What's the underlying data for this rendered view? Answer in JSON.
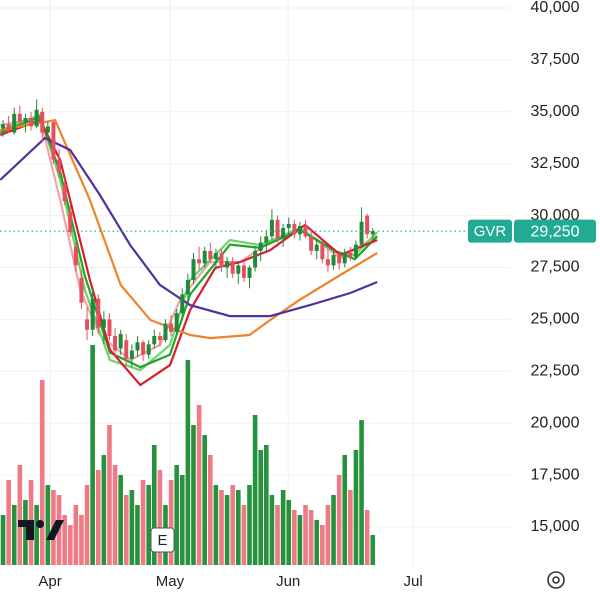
{
  "chart_data": {
    "type": "candlestick",
    "symbol": "GVR",
    "last_price": {
      "value": 29250,
      "label": "29,250"
    },
    "earnings_marker": "E",
    "up_color": "#1f8a3a",
    "down_color": "#e5505f",
    "volume_up_color": "#26923c",
    "volume_down_color": "#ee7a86",
    "price_label_color": "#22ab94",
    "xlim": [
      -0.54,
      90.5
    ],
    "xticks": [
      {
        "value": 8.4,
        "label": "Apr"
      },
      {
        "value": 29.8,
        "label": "May"
      },
      {
        "value": 50.9,
        "label": "Jun"
      },
      {
        "value": 73.2,
        "label": "Jul"
      }
    ],
    "ylim": [
      13170,
      40385
    ],
    "yticks": [
      {
        "value": 15000,
        "label": "15,000"
      },
      {
        "value": 17500,
        "label": "17,500"
      },
      {
        "value": 20000,
        "label": "20,000"
      },
      {
        "value": 22500,
        "label": "22,500"
      },
      {
        "value": 25000,
        "label": "25,000"
      },
      {
        "value": 27500,
        "label": "27,500"
      },
      {
        "value": 30000,
        "label": "30,000"
      },
      {
        "value": 32500,
        "label": "32,500"
      },
      {
        "value": 35000,
        "label": "35,000"
      },
      {
        "value": 37500,
        "label": "37,500"
      },
      {
        "value": 40000,
        "label": "40,000"
      }
    ],
    "vlim": [
      0,
      240
    ],
    "candles": [
      [
        34200,
        34600,
        33800,
        34400
      ],
      [
        34400,
        34800,
        34000,
        34100
      ],
      [
        34000,
        35200,
        33900,
        34900
      ],
      [
        34900,
        35300,
        34300,
        34500
      ],
      [
        34500,
        34900,
        34000,
        34700
      ],
      [
        34700,
        35000,
        34100,
        34300
      ],
      [
        34300,
        35600,
        34200,
        35100
      ],
      [
        35000,
        35200,
        33500,
        34000
      ],
      [
        34000,
        34500,
        33700,
        34300
      ],
      [
        34500,
        34600,
        32500,
        32700
      ],
      [
        32700,
        33200,
        31800,
        32100
      ],
      [
        31500,
        31800,
        30500,
        30700
      ],
      [
        30200,
        30600,
        29000,
        29200
      ],
      [
        28500,
        28800,
        27300,
        27600
      ],
      [
        27000,
        27400,
        25500,
        25800
      ],
      [
        25000,
        25600,
        24000,
        24500
      ],
      [
        24500,
        26500,
        24200,
        26000
      ],
      [
        26000,
        26200,
        24300,
        24600
      ],
      [
        24600,
        25400,
        23800,
        25000
      ],
      [
        25000,
        25300,
        24000,
        24200
      ],
      [
        24200,
        24600,
        23200,
        23500
      ],
      [
        23600,
        24500,
        23300,
        24300
      ],
      [
        24000,
        24300,
        22800,
        23100
      ],
      [
        23100,
        23800,
        22700,
        23500
      ],
      [
        23500,
        24200,
        23200,
        23900
      ],
      [
        23900,
        24000,
        23000,
        23300
      ],
      [
        23300,
        24000,
        23100,
        23800
      ],
      [
        23800,
        24500,
        23600,
        24200
      ],
      [
        24200,
        24400,
        23700,
        24000
      ],
      [
        24000,
        25000,
        23900,
        24800
      ],
      [
        24800,
        25200,
        24200,
        24400
      ],
      [
        24400,
        25500,
        24300,
        25300
      ],
      [
        25300,
        26500,
        25100,
        26200
      ],
      [
        26200,
        27200,
        25800,
        26900
      ],
      [
        26900,
        28200,
        26700,
        27900
      ],
      [
        27900,
        28500,
        27400,
        27700
      ],
      [
        27700,
        28500,
        27500,
        28300
      ],
      [
        28300,
        28700,
        27700,
        27900
      ],
      [
        27900,
        28400,
        27400,
        28200
      ],
      [
        28200,
        28400,
        27300,
        27500
      ],
      [
        27500,
        28000,
        27000,
        27800
      ],
      [
        27800,
        28000,
        27000,
        27200
      ],
      [
        27200,
        27800,
        26700,
        27600
      ],
      [
        27600,
        27800,
        26800,
        27000
      ],
      [
        27000,
        27600,
        26500,
        27500
      ],
      [
        27500,
        28500,
        27300,
        28300
      ],
      [
        28300,
        29000,
        27800,
        28700
      ],
      [
        28700,
        29300,
        28300,
        29000
      ],
      [
        29000,
        30300,
        28800,
        29800
      ],
      [
        29800,
        30000,
        28700,
        28900
      ],
      [
        28900,
        29600,
        28500,
        29400
      ],
      [
        29400,
        29900,
        29000,
        29600
      ],
      [
        29600,
        29800,
        28900,
        29100
      ],
      [
        29100,
        29700,
        28800,
        29500
      ],
      [
        29500,
        29800,
        28900,
        29000
      ],
      [
        29000,
        29300,
        28100,
        28300
      ],
      [
        28300,
        28900,
        27900,
        28600
      ],
      [
        28600,
        28800,
        27700,
        27900
      ],
      [
        27900,
        28400,
        27300,
        27600
      ],
      [
        27600,
        28300,
        27400,
        28100
      ],
      [
        28100,
        28300,
        27400,
        27700
      ],
      [
        27700,
        28400,
        27500,
        28200
      ],
      [
        28200,
        28500,
        27800,
        28000
      ],
      [
        28000,
        28800,
        27900,
        28600
      ],
      [
        28600,
        30400,
        28500,
        29700
      ],
      [
        30000,
        30100,
        28900,
        29100
      ],
      [
        29100,
        29400,
        28800,
        29250
      ]
    ],
    "volume": [
      50,
      85,
      60,
      100,
      65,
      85,
      60,
      185,
      80,
      75,
      70,
      50,
      40,
      60,
      50,
      80,
      220,
      95,
      110,
      140,
      100,
      90,
      70,
      75,
      60,
      85,
      80,
      120,
      95,
      60,
      85,
      100,
      90,
      205,
      140,
      160,
      130,
      110,
      80,
      75,
      70,
      80,
      75,
      60,
      80,
      150,
      115,
      120,
      70,
      60,
      75,
      65,
      55,
      50,
      60,
      55,
      45,
      40,
      60,
      70,
      90,
      110,
      75,
      115,
      145,
      55,
      30
    ],
    "series": [
      {
        "color": "#f4a3a8",
        "x": [
          -0.5,
          6.6,
          10.2,
          13.8,
          17.3,
          22.7,
          28,
          31.6,
          36.9,
          42.3,
          46.8,
          53,
          60.2,
          66.8
        ],
        "values": [
          34360,
          34700,
          30750,
          26420,
          24250,
          23040,
          23770,
          25930,
          27760,
          27760,
          28580,
          29400,
          27960,
          29020
        ]
      },
      {
        "color": "#6fd36b",
        "x": [
          -0.5,
          6.6,
          10.2,
          14.6,
          19.1,
          24.5,
          29.8,
          33.4,
          40.5,
          45.9,
          53,
          59.3,
          62.8,
          66.8
        ],
        "values": [
          34120,
          34850,
          31720,
          26420,
          23040,
          22560,
          23770,
          26900,
          28820,
          28580,
          29400,
          28250,
          28100,
          29210
        ]
      },
      {
        "color": "#1ea52c",
        "x": [
          -0.5,
          6.6,
          10.2,
          14.6,
          19.1,
          24.5,
          29.8,
          33.4,
          40.5,
          45.9,
          53,
          59.3,
          62.8,
          66.8
        ],
        "values": [
          34000,
          34750,
          32100,
          27100,
          23400,
          22700,
          23300,
          26200,
          28600,
          28450,
          29300,
          28300,
          27900,
          29000
        ]
      },
      {
        "color": "#d81e2c",
        "x": [
          -0.5,
          6.6,
          10.2,
          15.5,
          19.1,
          24.5,
          29.8,
          33.4,
          37.9,
          42.3,
          47.7,
          53.9,
          60.2,
          66.8
        ],
        "values": [
          33880,
          34600,
          32680,
          26900,
          23530,
          21840,
          22800,
          25450,
          27480,
          27760,
          28340,
          29550,
          28100,
          28820
        ]
      },
      {
        "color": "#f0832a",
        "x": [
          -0.5,
          9.3,
          15.5,
          21,
          26.3,
          33.4,
          37,
          44,
          47.7,
          53,
          60.2,
          66.8
        ],
        "values": [
          34120,
          34600,
          30750,
          26660,
          24970,
          24250,
          24100,
          24250,
          24970,
          25950,
          27140,
          28200
        ]
      },
      {
        "color": "#5230a0",
        "x": [
          -0.5,
          7.5,
          12,
          17.3,
          22.7,
          28,
          33.4,
          40.5,
          47.7,
          54.8,
          62,
          66.8
        ],
        "values": [
          31720,
          33740,
          33160,
          30990,
          28580,
          26660,
          25690,
          25160,
          25160,
          25690,
          26270,
          26800
        ]
      }
    ]
  }
}
